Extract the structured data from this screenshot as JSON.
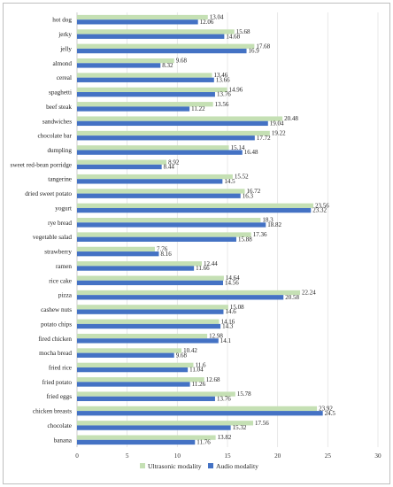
{
  "chart_data": {
    "type": "bar",
    "orientation": "horizontal",
    "title": "",
    "xlabel": "",
    "ylabel": "",
    "xlim": [
      0,
      30
    ],
    "xticks": [
      0,
      5,
      10,
      15,
      20,
      25,
      30
    ],
    "grid": true,
    "legend_position": "bottom",
    "categories": [
      "hot dog",
      "jerky",
      "jelly",
      "almond",
      "cereal",
      "spaghetti",
      "beef steak",
      "sandwiches",
      "chocolate bar",
      "dumpling",
      "sweet red-bean porridge",
      "tangerine",
      "dried sweet potato",
      "yogurt",
      "rye bread",
      "vegetable salad",
      "strawberry",
      "ramen",
      "rice cake",
      "pizza",
      "cashew nuts",
      "potato chips",
      "fired chicken",
      "mocha bread",
      "fried rice",
      "fried potato",
      "fried eggs",
      "chicken breasts",
      "chocolate",
      "banana"
    ],
    "series": [
      {
        "name": "Ultrasonic modality",
        "color": "#c5e0b4",
        "values": [
          13.04,
          15.68,
          17.68,
          9.68,
          13.46,
          14.96,
          13.56,
          20.48,
          19.22,
          15.14,
          8.92,
          15.52,
          16.72,
          23.56,
          18.3,
          17.36,
          7.76,
          12.44,
          14.64,
          22.24,
          15.08,
          14.16,
          12.98,
          10.42,
          11.6,
          12.68,
          15.78,
          23.92,
          17.56,
          13.82
        ],
        "labels": [
          "13.04",
          "15.68",
          "17.68",
          "9.68",
          "13.46",
          "14.96",
          "13.56",
          "20.48",
          "19.22",
          "15.14",
          "8.92",
          "15.52",
          "16.72",
          "23.56",
          "18.3",
          "17.36",
          "7.76",
          "12.44",
          "14.64",
          "22.24",
          "15.08",
          "14.16",
          "12.98",
          "10.42",
          "11.6",
          "12.68",
          "15.78",
          "23.92",
          "17.56",
          "13.82"
        ]
      },
      {
        "name": "Audio modality",
        "color": "#4472c4",
        "values": [
          12.06,
          14.68,
          16.9,
          8.32,
          13.66,
          13.76,
          11.22,
          19.04,
          17.72,
          16.48,
          8.44,
          14.5,
          16.3,
          23.32,
          18.82,
          15.88,
          8.16,
          11.66,
          14.56,
          20.58,
          14.6,
          14.3,
          14.1,
          9.68,
          11.04,
          11.26,
          13.76,
          24.5,
          15.32,
          11.76
        ],
        "labels": [
          "12.06",
          "14.68",
          "16.9",
          "8.32",
          "13.66",
          "13.76",
          "11.22",
          "19.04",
          "17.72",
          "16.48",
          "8.44",
          "14.5",
          "16.3",
          "23.32",
          "18.82",
          "15.88",
          "8.16",
          "11.66",
          "14.56",
          "20.58",
          "14.6",
          "14.3",
          "14.1",
          "9.68",
          "11.04",
          "11.26",
          "13.76",
          "24.5",
          "15.32",
          "11.76"
        ]
      }
    ]
  }
}
